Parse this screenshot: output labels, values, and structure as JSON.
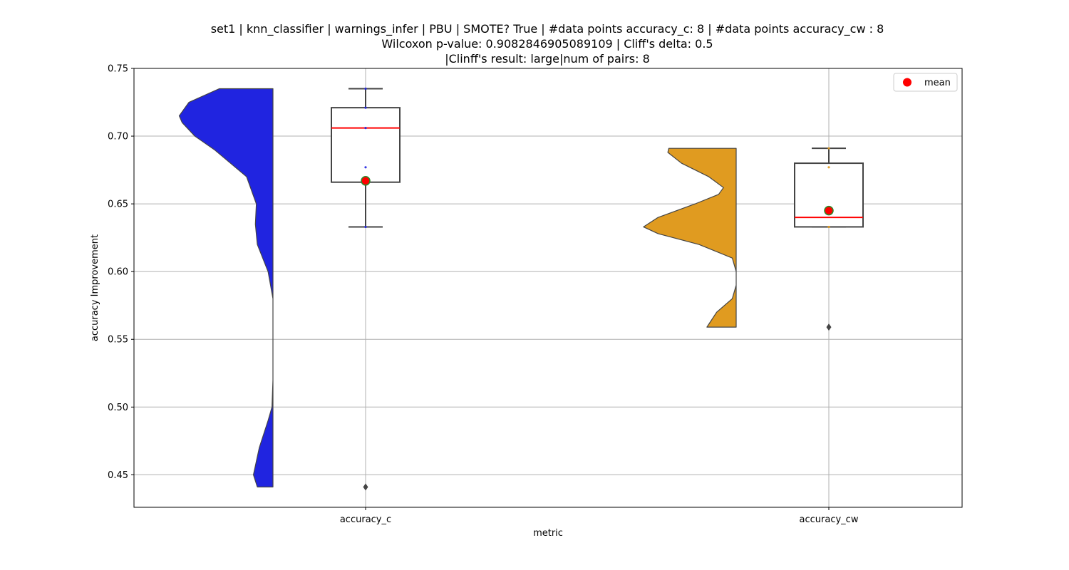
{
  "chart_data": {
    "type": "violin-box",
    "title_lines": [
      "set1 | knn_classifier | warnings_infer | PBU | SMOTE? True | #data points accuracy_c: 8 | #data points accuracy_cw : 8",
      "Wilcoxon p-value: 0.9082846905089109 | Cliff's delta: 0.5",
      "|Clinff's result: large|num of pairs: 8"
    ],
    "xlabel": "metric",
    "ylabel": "accuracy Improvement",
    "categories": [
      "accuracy_c",
      "accuracy_cw"
    ],
    "ylim": [
      0.426,
      0.75
    ],
    "yticks": [
      "0.45",
      "0.50",
      "0.55",
      "0.60",
      "0.65",
      "0.70",
      "0.75"
    ],
    "grid": true,
    "legend": {
      "label": "mean",
      "placement": "top-right",
      "color": "#ff0000"
    },
    "colors": {
      "violin_c": "#2024e0",
      "violin_cw": "#e09b20",
      "violin_edge": "#444444",
      "box_edge": "#444444",
      "median": "#ff0000",
      "mean_fill": "#ff0000",
      "mean_edge": "#2a8a2a",
      "grid": "#b0b0b0"
    },
    "series": [
      {
        "category": "accuracy_c",
        "side": "left",
        "color": "#2024e0",
        "data_range": [
          0.441,
          0.735
        ],
        "density": [
          [
            0.441,
            0.16
          ],
          [
            0.45,
            0.2
          ],
          [
            0.47,
            0.14
          ],
          [
            0.49,
            0.05
          ],
          [
            0.5,
            0.01
          ],
          [
            0.52,
            0.0
          ],
          [
            0.56,
            0.0
          ],
          [
            0.58,
            0.0
          ],
          [
            0.6,
            0.05
          ],
          [
            0.62,
            0.16
          ],
          [
            0.635,
            0.18
          ],
          [
            0.65,
            0.17
          ],
          [
            0.67,
            0.27
          ],
          [
            0.69,
            0.6
          ],
          [
            0.7,
            0.8
          ],
          [
            0.71,
            0.93
          ],
          [
            0.715,
            0.96
          ],
          [
            0.725,
            0.86
          ],
          [
            0.735,
            0.55
          ]
        ],
        "box": {
          "q1": 0.666,
          "median": 0.706,
          "q3": 0.721,
          "whisker_low": 0.633,
          "whisker_high": 0.735
        },
        "mean": 0.667,
        "outliers": [
          0.441
        ],
        "points": [
          0.735,
          0.721,
          0.706,
          0.677,
          0.667,
          0.633
        ]
      },
      {
        "category": "accuracy_cw",
        "side": "left",
        "color": "#e09b20",
        "data_range": [
          0.559,
          0.691
        ],
        "density": [
          [
            0.559,
            0.3
          ],
          [
            0.57,
            0.2
          ],
          [
            0.58,
            0.04
          ],
          [
            0.59,
            0.0
          ],
          [
            0.6,
            0.0
          ],
          [
            0.61,
            0.04
          ],
          [
            0.62,
            0.38
          ],
          [
            0.628,
            0.8
          ],
          [
            0.633,
            0.95
          ],
          [
            0.64,
            0.8
          ],
          [
            0.65,
            0.42
          ],
          [
            0.657,
            0.18
          ],
          [
            0.662,
            0.13
          ],
          [
            0.67,
            0.28
          ],
          [
            0.68,
            0.56
          ],
          [
            0.688,
            0.7
          ],
          [
            0.691,
            0.69
          ]
        ],
        "box": {
          "q1": 0.633,
          "median": 0.64,
          "q3": 0.68,
          "whisker_low": 0.633,
          "whisker_high": 0.691
        },
        "mean": 0.645,
        "outliers": [
          0.559
        ],
        "points": [
          0.691,
          0.677,
          0.645,
          0.633
        ]
      }
    ]
  }
}
